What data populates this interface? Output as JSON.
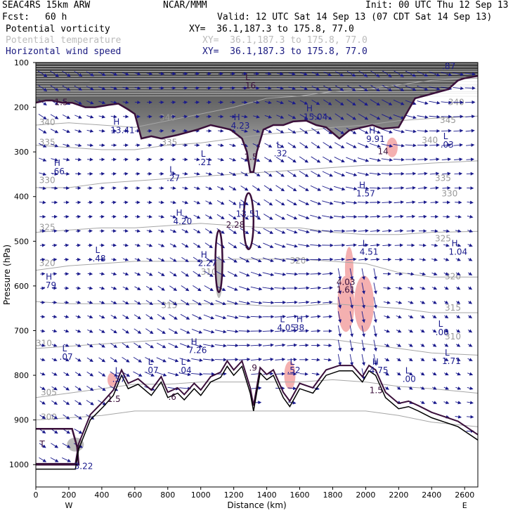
{
  "header": {
    "model": "SEAC4RS 15km ARW",
    "org": "NCAR/MMM",
    "init": "Init: 00 UTC Thu 12 Sep 13",
    "fcst_label": "Fcst:",
    "fcst_value": "60 h",
    "valid": "Valid: 12 UTC Sat 14 Sep 13 (07 CDT Sat 14 Sep 13)",
    "fields": [
      {
        "name": "Potential vorticity",
        "xy": "XY=  36.1,187.3 to 175.8, 77.0",
        "color": "#000000"
      },
      {
        "name": "Potential temperature",
        "xy": "XY=  36.1,187.3 to 175.8, 77.0",
        "color": "#bbbbbb"
      },
      {
        "name": "Horizontal wind speed",
        "xy": "XY=  36.1,187.3 to 175.8, 77.0",
        "color": "#1a1a80"
      }
    ]
  },
  "colors": {
    "pv": "#3a0f3a",
    "theta": "#a6a6a6",
    "wind": "#1a1a8c",
    "terrain": "#000000",
    "pink": "#f4b0b0"
  },
  "chart_data": {
    "type": "cross-section",
    "xlabel": "Distance (km)",
    "ylabel": "Pressure (hPa)",
    "xlim": [
      0,
      2680
    ],
    "ylim": [
      1050,
      100
    ],
    "xticks": [
      0,
      200,
      400,
      600,
      800,
      1000,
      1200,
      1400,
      1600,
      1800,
      2000,
      2200,
      2400,
      2600
    ],
    "yticks": [
      100,
      200,
      300,
      400,
      500,
      600,
      700,
      800,
      900,
      1000
    ],
    "x_end_labels": {
      "left": "W",
      "right": "E"
    },
    "terrain": [
      [
        0,
        1010
      ],
      [
        240,
        1010
      ],
      [
        260,
        965
      ],
      [
        330,
        900
      ],
      [
        410,
        870
      ],
      [
        470,
        845
      ],
      [
        520,
        800
      ],
      [
        560,
        830
      ],
      [
        620,
        820
      ],
      [
        700,
        845
      ],
      [
        760,
        815
      ],
      [
        800,
        850
      ],
      [
        860,
        840
      ],
      [
        900,
        855
      ],
      [
        960,
        830
      ],
      [
        1000,
        845
      ],
      [
        1060,
        815
      ],
      [
        1120,
        805
      ],
      [
        1160,
        780
      ],
      [
        1200,
        800
      ],
      [
        1250,
        780
      ],
      [
        1300,
        840
      ],
      [
        1320,
        880
      ],
      [
        1360,
        795
      ],
      [
        1400,
        810
      ],
      [
        1440,
        800
      ],
      [
        1500,
        850
      ],
      [
        1540,
        870
      ],
      [
        1600,
        830
      ],
      [
        1680,
        840
      ],
      [
        1760,
        800
      ],
      [
        1840,
        790
      ],
      [
        1920,
        790
      ],
      [
        1980,
        815
      ],
      [
        2020,
        790
      ],
      [
        2060,
        800
      ],
      [
        2120,
        850
      ],
      [
        2200,
        875
      ],
      [
        2260,
        870
      ],
      [
        2320,
        880
      ],
      [
        2400,
        895
      ],
      [
        2480,
        905
      ],
      [
        2560,
        915
      ],
      [
        2640,
        935
      ],
      [
        2680,
        945
      ]
    ],
    "pv_2pvu_line": [
      [
        0,
        190
      ],
      [
        60,
        185
      ],
      [
        100,
        185
      ],
      [
        160,
        190
      ],
      [
        220,
        190
      ],
      [
        300,
        200
      ],
      [
        360,
        200
      ],
      [
        440,
        195
      ],
      [
        500,
        192
      ],
      [
        560,
        205
      ],
      [
        600,
        215
      ],
      [
        640,
        270
      ],
      [
        700,
        265
      ],
      [
        760,
        270
      ],
      [
        860,
        262
      ],
      [
        980,
        250
      ],
      [
        1060,
        240
      ],
      [
        1120,
        245
      ],
      [
        1180,
        250
      ],
      [
        1250,
        270
      ],
      [
        1280,
        300
      ],
      [
        1300,
        345
      ],
      [
        1320,
        345
      ],
      [
        1340,
        300
      ],
      [
        1380,
        250
      ],
      [
        1440,
        240
      ],
      [
        1500,
        240
      ],
      [
        1560,
        232
      ],
      [
        1640,
        230
      ],
      [
        1700,
        240
      ],
      [
        1760,
        245
      ],
      [
        1840,
        270
      ],
      [
        1900,
        252
      ],
      [
        1980,
        245
      ],
      [
        2040,
        240
      ],
      [
        2100,
        248
      ],
      [
        2200,
        245
      ],
      [
        2300,
        180
      ],
      [
        2400,
        170
      ],
      [
        2500,
        160
      ],
      [
        2560,
        140
      ],
      [
        2600,
        135
      ],
      [
        2680,
        130
      ]
    ],
    "theta_isentropes": [
      {
        "label": "340",
        "p": [
          240,
          235,
          240,
          245,
          230,
          215,
          200,
          180,
          175,
          165,
          160,
          150,
          140,
          135
        ]
      },
      {
        "label": "335",
        "p": [
          285,
          290,
          295,
          295,
          285,
          280,
          270,
          260,
          255,
          245,
          240,
          230,
          225,
          220
        ]
      },
      {
        "label": "330",
        "p": [
          380,
          380,
          370,
          365,
          360,
          355,
          350,
          345,
          340,
          335,
          330,
          330,
          325,
          320
        ]
      },
      {
        "label": "325",
        "p": [
          480,
          475,
          470,
          470,
          465,
          460,
          465,
          470,
          470,
          480,
          485,
          485,
          480,
          478
        ]
      },
      {
        "label": "320",
        "p": [
          565,
          555,
          550,
          545,
          545,
          545,
          540,
          540,
          540,
          545,
          550,
          570,
          580,
          580
        ]
      },
      {
        "label": "315",
        "p": [
          635,
          640,
          640,
          640,
          640,
          640,
          640,
          645,
          645,
          640,
          645,
          650,
          660,
          660
        ]
      },
      {
        "label": "310",
        "p": [
          740,
          735,
          730,
          725,
          720,
          720,
          720,
          720,
          720,
          720,
          730,
          740,
          750,
          755
        ]
      },
      {
        "label": "305",
        "p": [
          850,
          840,
          830,
          820,
          820,
          815,
          815,
          815,
          815,
          810,
          815,
          825,
          830,
          840
        ]
      },
      {
        "label": "300",
        "p": [
          900,
          895,
          890,
          880,
          880,
          880,
          880,
          880,
          880,
          880,
          880,
          890,
          905,
          915
        ]
      }
    ],
    "theta_labels": [
      {
        "text": "340",
        "x": 20,
        "p": 240
      },
      {
        "text": "335",
        "x": 20,
        "p": 285
      },
      {
        "text": "330",
        "x": 20,
        "p": 370
      },
      {
        "text": "325",
        "x": 20,
        "p": 475
      },
      {
        "text": "320",
        "x": 20,
        "p": 555
      },
      {
        "text": "310",
        "x": 0,
        "p": 735
      },
      {
        "text": "305",
        "x": 30,
        "p": 845
      },
      {
        "text": "300",
        "x": 30,
        "p": 900
      },
      {
        "text": "335",
        "x": 760,
        "p": 285
      },
      {
        "text": "340",
        "x": 750,
        "p": 230
      },
      {
        "text": "340",
        "x": 2500,
        "p": 195
      },
      {
        "text": "345",
        "x": 2450,
        "p": 235
      },
      {
        "text": "340",
        "x": 2340,
        "p": 280
      },
      {
        "text": "335",
        "x": 2420,
        "p": 365
      },
      {
        "text": "330",
        "x": 2460,
        "p": 400
      },
      {
        "text": "325",
        "x": 2420,
        "p": 500
      },
      {
        "text": "320",
        "x": 1540,
        "p": 550
      },
      {
        "text": "320",
        "x": 2480,
        "p": 585
      },
      {
        "text": "315",
        "x": 2480,
        "p": 655
      },
      {
        "text": "315",
        "x": 760,
        "p": 650
      },
      {
        "text": "310",
        "x": 2480,
        "p": 720
      },
      {
        "text": "310",
        "x": 1000,
        "p": 575
      }
    ],
    "extrema": [
      {
        "t": "L",
        "v": ".16",
        "x": 1270,
        "p": 158,
        "c": "#3a0f3a"
      },
      {
        "t": "",
        "v": "1.5",
        "x": 130,
        "p": 195,
        "c": "#3a0f3a"
      },
      {
        "t": "H",
        "v": ".87",
        "x": 2480,
        "p": 115,
        "c": "#1a1a8c"
      },
      {
        "t": "H",
        "v": "13.41",
        "x": 470,
        "p": 258,
        "c": "#1a1a8c"
      },
      {
        "t": "H",
        "v": "4.23",
        "x": 1200,
        "p": 248,
        "c": "#1a1a8c"
      },
      {
        "t": "H",
        "v": "15.04",
        "x": 1640,
        "p": 228,
        "c": "#1a1a8c"
      },
      {
        "t": "H",
        "v": "9.91",
        "x": 2020,
        "p": 278,
        "c": "#1a1a8c"
      },
      {
        "t": "L",
        "v": ".03",
        "x": 2470,
        "p": 290,
        "c": "#1a1a8c"
      },
      {
        "t": "",
        "v": "14",
        "x": 2090,
        "p": 305,
        "c": "#3a0f3a"
      },
      {
        "t": "H",
        "v": ".66",
        "x": 110,
        "p": 350,
        "c": "#1a1a8c"
      },
      {
        "t": "L",
        "v": ".21",
        "x": 1000,
        "p": 330,
        "c": "#1a1a8c"
      },
      {
        "t": "",
        "v": "1.5",
        "x": 1280,
        "p": 318,
        "c": "#3a0f3a"
      },
      {
        "t": "L",
        "v": ".32",
        "x": 1460,
        "p": 310,
        "c": "#1a1a8c"
      },
      {
        "t": "L",
        "v": ".27",
        "x": 810,
        "p": 365,
        "c": "#1a1a8c"
      },
      {
        "t": "H",
        "v": "1.57",
        "x": 1960,
        "p": 400,
        "c": "#1a1a8c"
      },
      {
        "t": "H",
        "v": "13.51",
        "x": 1230,
        "p": 445,
        "c": "#1a1a8c"
      },
      {
        "t": "H",
        "v": "4.20",
        "x": 850,
        "p": 462,
        "c": "#1a1a8c"
      },
      {
        "t": "",
        "v": "2.28",
        "x": 1170,
        "p": 470,
        "c": "#3a0f3a"
      },
      {
        "t": "L",
        "v": "4.51",
        "x": 1980,
        "p": 530,
        "c": "#1a1a8c"
      },
      {
        "t": "H",
        "v": "1.04",
        "x": 2520,
        "p": 530,
        "c": "#1a1a8c"
      },
      {
        "t": "L",
        "v": ".48",
        "x": 360,
        "p": 545,
        "c": "#1a1a8c"
      },
      {
        "t": "H",
        "v": "2.27",
        "x": 1000,
        "p": 555,
        "c": "#1a1a8c"
      },
      {
        "t": "H",
        "v": ".79",
        "x": 60,
        "p": 605,
        "c": "#1a1a8c"
      },
      {
        "t": "",
        "v": "4.03",
        "x": 1840,
        "p": 598,
        "c": "#3a0f3a"
      },
      {
        "t": "",
        "v": "1.61",
        "x": 1840,
        "p": 615,
        "c": "#3a0f3a"
      },
      {
        "t": "L",
        "v": "4.05",
        "x": 1480,
        "p": 700,
        "c": "#1a1a8c"
      },
      {
        "t": "H",
        "v": "38",
        "x": 1580,
        "p": 700,
        "c": "#1a1a8c"
      },
      {
        "t": "L",
        "v": ".00",
        "x": 2440,
        "p": 710,
        "c": "#1a1a8c"
      },
      {
        "t": "H",
        "v": "7.26",
        "x": 940,
        "p": 750,
        "c": "#1a1a8c"
      },
      {
        "t": "L",
        "v": ".07",
        "x": 160,
        "p": 765,
        "c": "#1a1a8c"
      },
      {
        "t": "L",
        "v": "1.71",
        "x": 2480,
        "p": 775,
        "c": "#1a1a8c"
      },
      {
        "t": "L",
        "v": ".07",
        "x": 680,
        "p": 795,
        "c": "#1a1a8c"
      },
      {
        "t": "L",
        "v": ".04",
        "x": 880,
        "p": 795,
        "c": "#1a1a8c"
      },
      {
        "t": "",
        "v": ".9",
        "x": 1310,
        "p": 790,
        "c": "#3a0f3a"
      },
      {
        "t": "L",
        "v": ".52",
        "x": 1540,
        "p": 795,
        "c": "#1a1a8c"
      },
      {
        "t": "H",
        "v": "4.75",
        "x": 2040,
        "p": 795,
        "c": "#1a1a8c"
      },
      {
        "t": "L",
        "v": ".00",
        "x": 2240,
        "p": 815,
        "c": "#1a1a8c"
      },
      {
        "t": "L",
        "v": ".57",
        "x": 480,
        "p": 815,
        "c": "#1a1a8c"
      },
      {
        "t": "",
        "v": "1.5",
        "x": 2040,
        "p": 840,
        "c": "#3a0f3a"
      },
      {
        "t": "",
        "v": "1.5",
        "x": 450,
        "p": 860,
        "c": "#3a0f3a"
      },
      {
        "t": "",
        "v": ".6",
        "x": 820,
        "p": 855,
        "c": "#3a0f3a"
      },
      {
        "t": "",
        "v": "T",
        "x": 40,
        "p": 960,
        "c": "#3a0f3a"
      },
      {
        "t": "",
        "v": "3.22",
        "x": 250,
        "p": 1010,
        "c": "#1a1a8c"
      }
    ]
  }
}
